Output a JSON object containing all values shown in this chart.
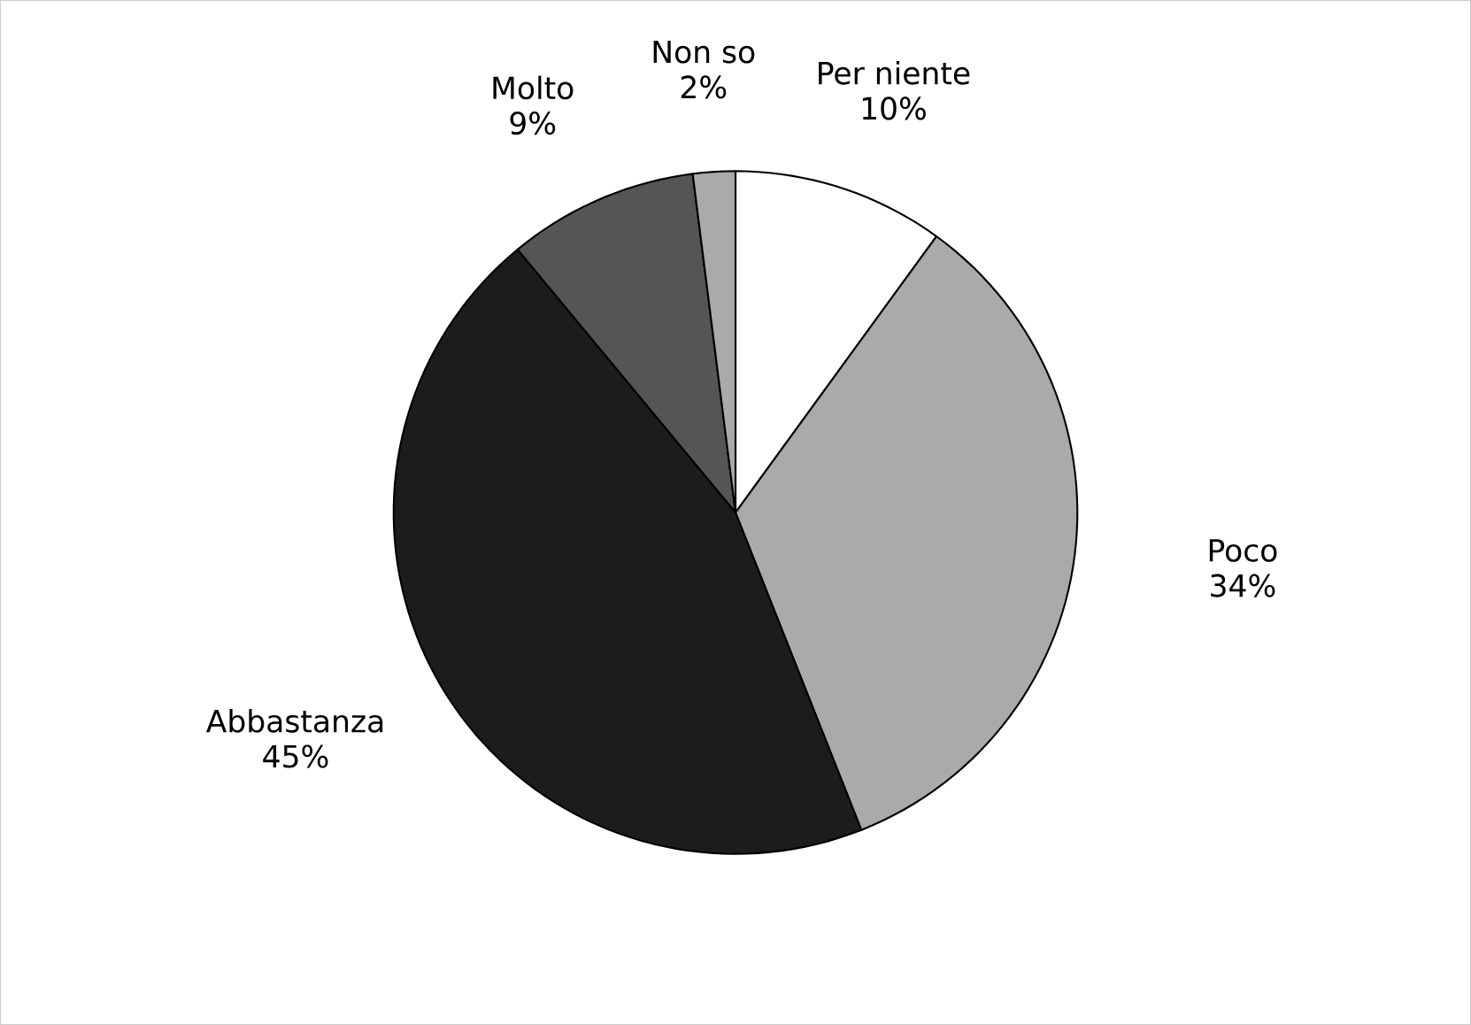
{
  "chart_data": {
    "type": "pie",
    "categories": [
      "Per niente",
      "Poco",
      "Abbastanza",
      "Molto",
      "Non so"
    ],
    "values": [
      10,
      34,
      45,
      9,
      2
    ],
    "value_labels": [
      "10%",
      "34%",
      "45%",
      "9%",
      "2%"
    ],
    "colors": [
      "#ffffff",
      "#aaaaaa",
      "#1c1c1c",
      "#555555",
      "#aaaaaa"
    ]
  }
}
